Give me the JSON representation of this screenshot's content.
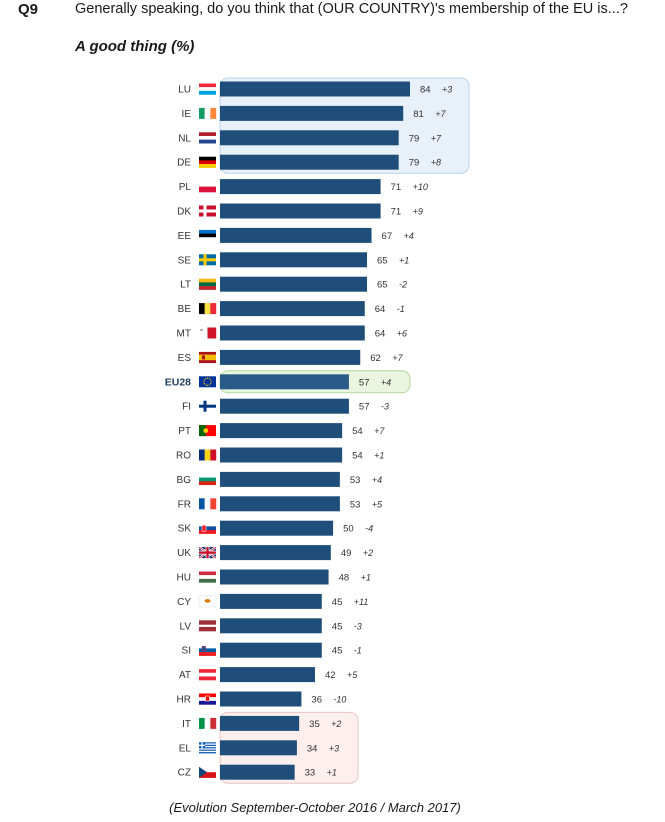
{
  "header": {
    "qnum": "Q9",
    "question": "Generally speaking, do you think that (OUR COUNTRY)'s membership of the EU is...?",
    "subtitle": "A good thing (%)"
  },
  "footnote": "(Evolution September-October 2016 / March 2017)",
  "chart_data": {
    "type": "bar",
    "orientation": "horizontal",
    "categories": [
      "LU",
      "IE",
      "NL",
      "DE",
      "PL",
      "DK",
      "EE",
      "SE",
      "LT",
      "BE",
      "MT",
      "ES",
      "EU28",
      "FI",
      "PT",
      "RO",
      "BG",
      "FR",
      "SK",
      "UK",
      "HU",
      "CY",
      "LV",
      "SI",
      "AT",
      "HR",
      "IT",
      "EL",
      "CZ"
    ],
    "values": [
      84,
      81,
      79,
      79,
      71,
      71,
      67,
      65,
      65,
      64,
      64,
      62,
      57,
      57,
      54,
      54,
      53,
      53,
      50,
      49,
      48,
      45,
      45,
      45,
      42,
      36,
      35,
      34,
      33
    ],
    "changes": [
      "+3",
      "+7",
      "+7",
      "+8",
      "+10",
      "+9",
      "+4",
      "+1",
      "-2",
      "-1",
      "+6",
      "+7",
      "+4",
      "-3",
      "+7",
      "+1",
      "+4",
      "+5",
      "-4",
      "+2",
      "+1",
      "+11",
      "-3",
      "-1",
      "+5",
      "-10",
      "+2",
      "+3",
      "+1"
    ],
    "highlight_groups": [
      {
        "categories": [
          "LU",
          "IE",
          "NL",
          "DE"
        ],
        "color": "#e8f1fa",
        "border": "#b8d2ea"
      },
      {
        "categories": [
          "EU28"
        ],
        "color": "#eaf5e0",
        "border": "#b6d79a"
      },
      {
        "categories": [
          "IT",
          "EL",
          "CZ"
        ],
        "color": "#fcefee",
        "border": "#e8c4c1"
      }
    ],
    "bar_color": "#1f4e7a",
    "eu28_bar_color": "#2a5a88"
  },
  "flag_icons": {
    "LU": "luxembourg-flag-icon",
    "IE": "ireland-flag-icon",
    "NL": "netherlands-flag-icon",
    "DE": "germany-flag-icon",
    "PL": "poland-flag-icon",
    "DK": "denmark-flag-icon",
    "EE": "estonia-flag-icon",
    "SE": "sweden-flag-icon",
    "LT": "lithuania-flag-icon",
    "BE": "belgium-flag-icon",
    "MT": "malta-flag-icon",
    "ES": "spain-flag-icon",
    "EU28": "eu-flag-icon",
    "FI": "finland-flag-icon",
    "PT": "portugal-flag-icon",
    "RO": "romania-flag-icon",
    "BG": "bulgaria-flag-icon",
    "FR": "france-flag-icon",
    "SK": "slovakia-flag-icon",
    "UK": "uk-flag-icon",
    "HU": "hungary-flag-icon",
    "CY": "cyprus-flag-icon",
    "LV": "latvia-flag-icon",
    "SI": "slovenia-flag-icon",
    "AT": "austria-flag-icon",
    "HR": "croatia-flag-icon",
    "IT": "italy-flag-icon",
    "EL": "greece-flag-icon",
    "CZ": "czechia-flag-icon"
  }
}
